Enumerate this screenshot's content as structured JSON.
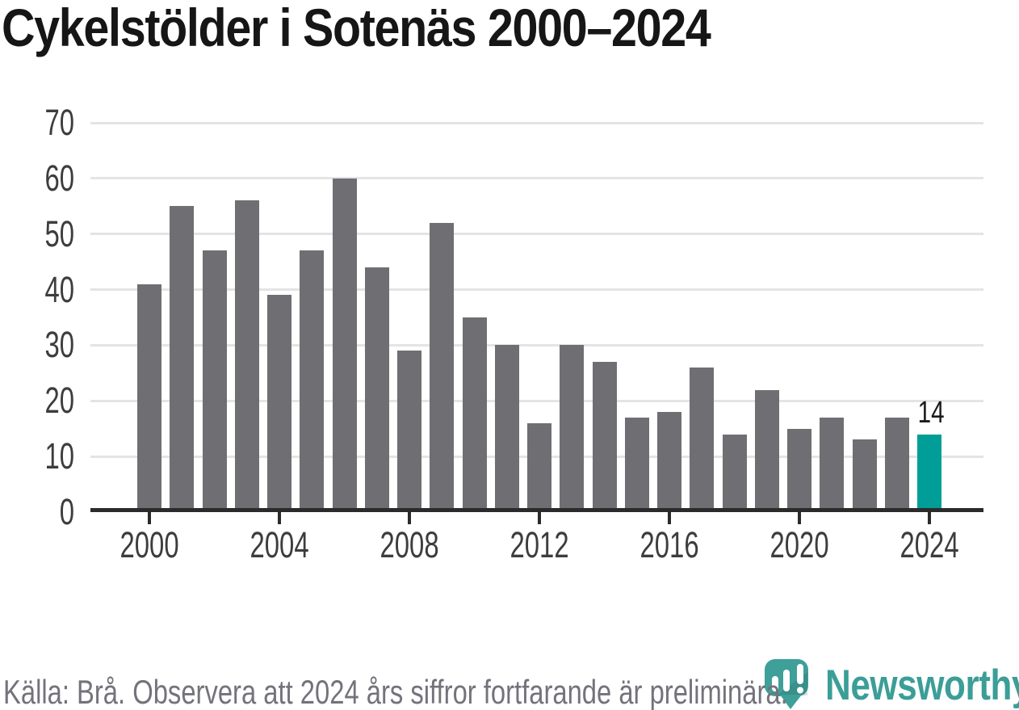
{
  "title": "Cykelstölder i Sotenäs 2000–2024",
  "chart_data": {
    "type": "bar",
    "title": "Cykelstölder i Sotenäs 2000–2024",
    "categories": [
      2000,
      2001,
      2002,
      2003,
      2004,
      2005,
      2006,
      2007,
      2008,
      2009,
      2010,
      2011,
      2012,
      2013,
      2014,
      2015,
      2016,
      2017,
      2018,
      2019,
      2020,
      2021,
      2022,
      2023,
      2024
    ],
    "values": [
      41,
      55,
      47,
      56,
      39,
      47,
      60,
      44,
      29,
      52,
      35,
      30,
      16,
      30,
      27,
      17,
      18,
      26,
      14,
      22,
      15,
      17,
      13,
      17,
      14
    ],
    "xlabel": "",
    "ylabel": "",
    "ylim": [
      0,
      70
    ],
    "yticks": [
      0,
      10,
      20,
      30,
      40,
      50,
      60,
      70
    ],
    "xticks": [
      2000,
      2004,
      2008,
      2012,
      2016,
      2020,
      2024
    ],
    "grid": "horizontal",
    "legend": "none",
    "bar_color": "#6f6f73",
    "highlight_year": 2024,
    "highlight_value": 14,
    "highlight_label": "14",
    "highlight_color": "#009e97"
  },
  "footer": {
    "source_note": "Källa: Brå. Observera att 2024 års siffror fortfarande är preliminära."
  },
  "branding": {
    "logo_text": "Newsworthy",
    "logo_icon": "newsworthy-bubble-chart-icon",
    "logo_color": "#3b9e97"
  }
}
